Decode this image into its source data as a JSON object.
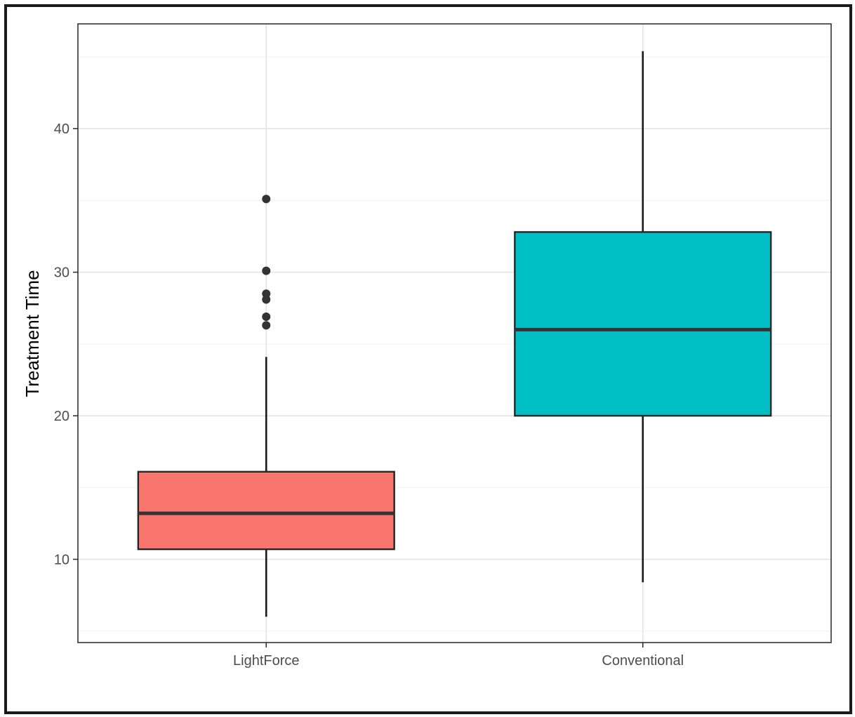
{
  "chart_data": {
    "type": "box",
    "ylabel": "Treatment Time",
    "xlabel": "",
    "ylim": [
      4.2,
      47.3
    ],
    "yticks": [
      10,
      20,
      30,
      40
    ],
    "yticks_minor": [
      5,
      15,
      25,
      35,
      45
    ],
    "grid": true,
    "legend": "none",
    "categories": [
      "LightForce",
      "Conventional"
    ],
    "boxes": [
      {
        "name": "LightForce",
        "color": "#F8766D",
        "whisker_low": 6.0,
        "q1": 10.7,
        "median": 13.2,
        "q3": 16.1,
        "whisker_high": 24.1,
        "outliers": [
          35.1,
          30.1,
          28.5,
          28.1,
          26.9,
          26.3
        ]
      },
      {
        "name": "Conventional",
        "color": "#00BFC4",
        "whisker_low": 8.4,
        "q1": 20.0,
        "median": 26.0,
        "q3": 32.8,
        "whisker_high": 45.4,
        "outliers": []
      }
    ]
  }
}
